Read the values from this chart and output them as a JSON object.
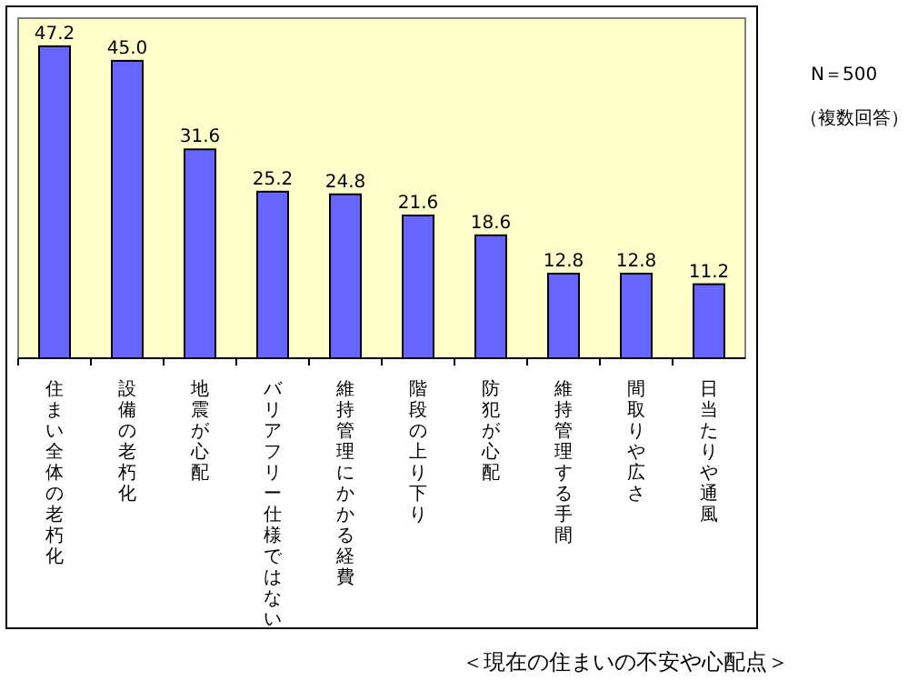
{
  "chart_data": {
    "type": "bar",
    "categories": [
      "住まい全体の老朽化",
      "設備の老朽化",
      "地震が心配",
      "バリアフリー仕様ではない",
      "維持管理にかかる経費",
      "階段の上り下り",
      "防犯が心配",
      "維持管理する手間",
      "間取りや広さ",
      "日当たりや通風"
    ],
    "values": [
      47.2,
      45.0,
      31.6,
      25.2,
      24.8,
      21.6,
      18.6,
      12.8,
      12.8,
      11.2
    ],
    "value_labels": [
      "47.2",
      "45.0",
      "31.6",
      "25.2",
      "24.8",
      "21.6",
      "18.6",
      "12.8",
      "12.8",
      "11.2"
    ],
    "color": "#6666ff",
    "annotations": [
      "N＝500",
      "（複数回答）",
      "＜現在の住まいの不安や心配点＞"
    ]
  }
}
